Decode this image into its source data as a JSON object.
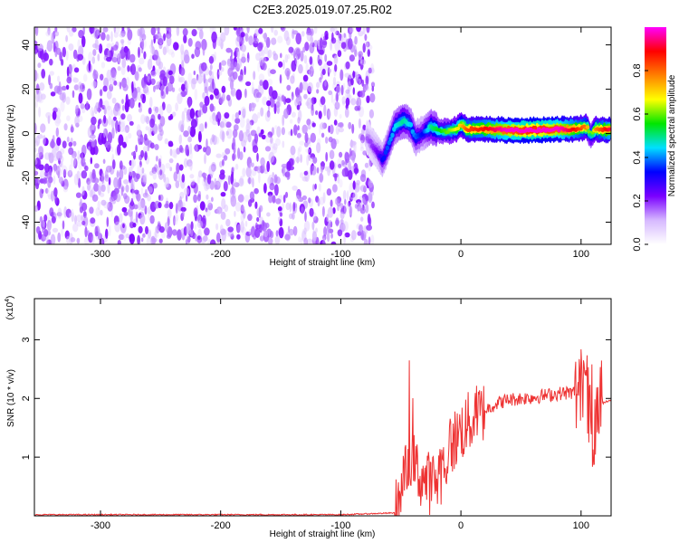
{
  "title": "C2E3.2025.019.07.25.R02",
  "chart_data": [
    {
      "type": "heatmap",
      "title": "C2E3.2025.019.07.25.R02",
      "xlabel": "Height of straight line (km)",
      "ylabel": "Frequency (Hz)",
      "xlim": [
        -355,
        125
      ],
      "ylim": [
        -50,
        48
      ],
      "xticks": [
        -300,
        -200,
        -100,
        0,
        100
      ],
      "yticks": [
        -40,
        -20,
        0,
        20,
        40
      ],
      "noise_region": {
        "x_from": -355,
        "x_to": -73,
        "freq_from": -50,
        "freq_to": 48,
        "typical_amplitude": 0.1
      },
      "signal_track": [
        {
          "x": -78,
          "freq": -2,
          "amplitude": 0.15
        },
        {
          "x": -70,
          "freq": -8,
          "amplitude": 0.2
        },
        {
          "x": -65,
          "freq": -12,
          "amplitude": 0.3
        },
        {
          "x": -60,
          "freq": -5,
          "amplitude": 0.35
        },
        {
          "x": -55,
          "freq": 3,
          "amplitude": 0.4
        },
        {
          "x": -48,
          "freq": 6,
          "amplitude": 0.45
        },
        {
          "x": -42,
          "freq": 4,
          "amplitude": 0.4
        },
        {
          "x": -38,
          "freq": -2,
          "amplitude": 0.35
        },
        {
          "x": -32,
          "freq": 0,
          "amplitude": 0.3
        },
        {
          "x": -25,
          "freq": 3,
          "amplitude": 0.45
        },
        {
          "x": -18,
          "freq": 1,
          "amplitude": 0.5
        },
        {
          "x": -10,
          "freq": 1,
          "amplitude": 0.55
        },
        {
          "x": -4,
          "freq": 2,
          "amplitude": 0.6
        },
        {
          "x": 0,
          "freq": 4,
          "amplitude": 0.65
        },
        {
          "x": 5,
          "freq": 2,
          "amplitude": 0.75
        },
        {
          "x": 20,
          "freq": 2,
          "amplitude": 0.8
        },
        {
          "x": 40,
          "freq": 1.5,
          "amplitude": 0.9
        },
        {
          "x": 60,
          "freq": 1.5,
          "amplitude": 0.95
        },
        {
          "x": 80,
          "freq": 2,
          "amplitude": 0.9
        },
        {
          "x": 95,
          "freq": 2,
          "amplitude": 0.8
        },
        {
          "x": 105,
          "freq": 3,
          "amplitude": 0.7
        },
        {
          "x": 108,
          "freq": -1,
          "amplitude": 0.45
        },
        {
          "x": 112,
          "freq": 2,
          "amplitude": 0.7
        },
        {
          "x": 125,
          "freq": 1.5,
          "amplitude": 0.85
        }
      ]
    },
    {
      "type": "colorbar",
      "label": "Normalized spectral amplitude",
      "range": [
        0,
        1
      ],
      "ticks": [
        "0.0",
        "0.2",
        "0.4",
        "0.6",
        "0.8"
      ],
      "tick_values": [
        0,
        0.2,
        0.4,
        0.6,
        0.8
      ],
      "colors": [
        "#ffffff",
        "#d6b8ff",
        "#7a00ff",
        "#0000ff",
        "#00e0ff",
        "#00e600",
        "#ffff00",
        "#ff8000",
        "#ff0000",
        "#ff00ff"
      ]
    },
    {
      "type": "line",
      "xlabel": "Height of straight line (km)",
      "ylabel": "SNR (10 * v/v)",
      "scale_label": "(x10",
      "scale_exponent": "4",
      "scale_suffix": ")",
      "xlim": [
        -355,
        125
      ],
      "ylim": [
        0,
        3.7
      ],
      "xticks": [
        -300,
        -200,
        -100,
        0,
        100
      ],
      "yticks": [
        1,
        2,
        3
      ],
      "line_color": "#ee3333",
      "series": [
        {
          "x": [
            -355,
            -100,
            -55,
            -50,
            -45,
            -42,
            -40,
            -35,
            -30,
            -25,
            -20,
            -15,
            -10,
            -5,
            0,
            5,
            10,
            20,
            30,
            40,
            50,
            60,
            70,
            80,
            90,
            100,
            105,
            108,
            110,
            112,
            115,
            125
          ],
          "y": [
            0.02,
            0.02,
            0.05,
            0.3,
            0.8,
            1.0,
            0.9,
            0.7,
            0.6,
            0.55,
            0.6,
            0.8,
            1.1,
            1.3,
            1.45,
            1.55,
            1.65,
            1.8,
            1.92,
            1.98,
            2.0,
            2.02,
            2.05,
            2.08,
            2.1,
            2.1,
            2.0,
            1.5,
            1.0,
            1.3,
            1.9,
            1.98
          ]
        }
      ]
    }
  ]
}
